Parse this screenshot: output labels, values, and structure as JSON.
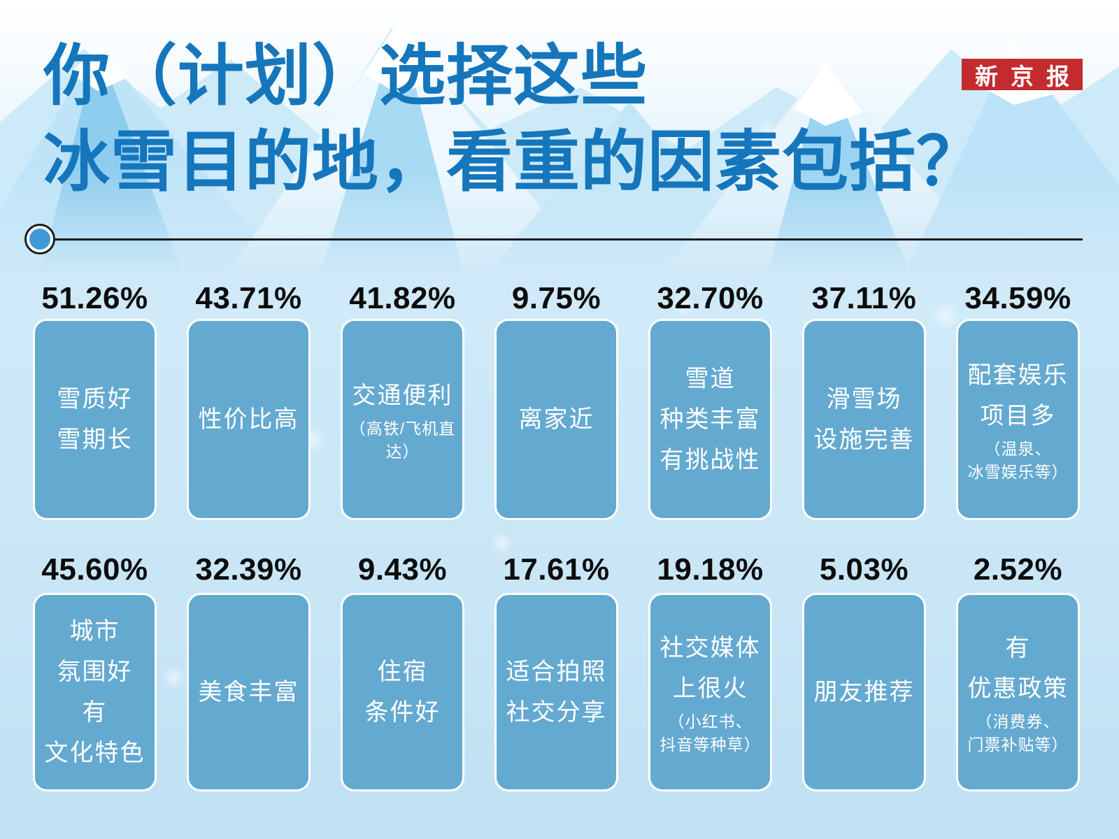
{
  "header": {
    "title_line1": "你（计划）选择这些",
    "title_line2": "冰雪目的地，看重的因素包括？",
    "badge": "新京报"
  },
  "colors": {
    "title_blue": "#1576bc",
    "card_blue": "#64a9d0",
    "badge_red": "#c32b2e",
    "percent_text": "#0c0c0c",
    "card_text": "#ffffff",
    "divider": "#1a1a1a",
    "divider_dot": "#3d9ad7",
    "background": "#cfe9f8"
  },
  "chart_data": {
    "type": "bar",
    "title": "你（计划）选择这些冰雪目的地，看重的因素包括？",
    "unit": "%",
    "legend": false,
    "grouping": {
      "rows": 2,
      "cols": 7
    },
    "categories": [
      "雪质好雪期长",
      "性价比高",
      "交通便利（高铁/飞机直达）",
      "离家近",
      "雪道种类丰富有挑战性",
      "滑雪场设施完善",
      "配套娱乐项目多（温泉、冰雪娱乐等）",
      "城市氛围好有文化特色",
      "美食丰富",
      "住宿条件好",
      "适合拍照社交分享",
      "社交媒体上很火（小红书、抖音等种草）",
      "朋友推荐",
      "有优惠政策（消费券、门票补贴等）"
    ],
    "values": [
      51.26,
      43.71,
      41.82,
      9.75,
      32.7,
      37.11,
      34.59,
      45.6,
      32.39,
      9.43,
      17.61,
      19.18,
      5.03,
      2.52
    ]
  },
  "rows": [
    {
      "cards": [
        {
          "pct": "51.26%",
          "lines": [
            "雪质好",
            "雪期长"
          ]
        },
        {
          "pct": "43.71%",
          "lines": [
            "性价比高"
          ]
        },
        {
          "pct": "41.82%",
          "lines": [
            "交通便利"
          ],
          "subs": [
            "（高铁/飞机直达）"
          ]
        },
        {
          "pct": "9.75%",
          "lines": [
            "离家近"
          ]
        },
        {
          "pct": "32.70%",
          "lines": [
            "雪道",
            "种类丰富",
            "有挑战性"
          ]
        },
        {
          "pct": "37.11%",
          "lines": [
            "滑雪场",
            "设施完善"
          ]
        },
        {
          "pct": "34.59%",
          "lines": [
            "配套娱乐",
            "项目多"
          ],
          "subs": [
            "（温泉、",
            "冰雪娱乐等）"
          ]
        }
      ]
    },
    {
      "cards": [
        {
          "pct": "45.60%",
          "lines": [
            "城市",
            "氛围好",
            "有",
            "文化特色"
          ]
        },
        {
          "pct": "32.39%",
          "lines": [
            "美食丰富"
          ]
        },
        {
          "pct": "9.43%",
          "lines": [
            "住宿",
            "条件好"
          ]
        },
        {
          "pct": "17.61%",
          "lines": [
            "适合拍照",
            "社交分享"
          ]
        },
        {
          "pct": "19.18%",
          "lines": [
            "社交媒体",
            "上很火"
          ],
          "subs": [
            "（小红书、",
            "抖音等种草）"
          ]
        },
        {
          "pct": "5.03%",
          "lines": [
            "朋友推荐"
          ]
        },
        {
          "pct": "2.52%",
          "lines": [
            "有",
            "优惠政策"
          ],
          "subs": [
            "（消费券、",
            "门票补贴等）"
          ]
        }
      ]
    }
  ]
}
